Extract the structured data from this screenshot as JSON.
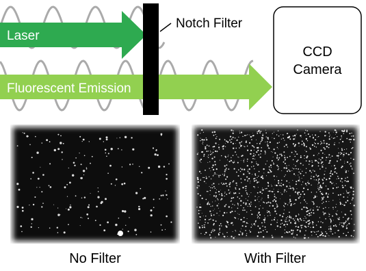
{
  "diagram": {
    "laser_label": "Laser",
    "filter_label": "Notch Filter",
    "emission_label": "Fluorescent Emission",
    "camera_label": [
      "CCD",
      "Camera"
    ]
  },
  "images": [
    {
      "caption": "No Filter"
    },
    {
      "caption": "With Filter"
    }
  ]
}
